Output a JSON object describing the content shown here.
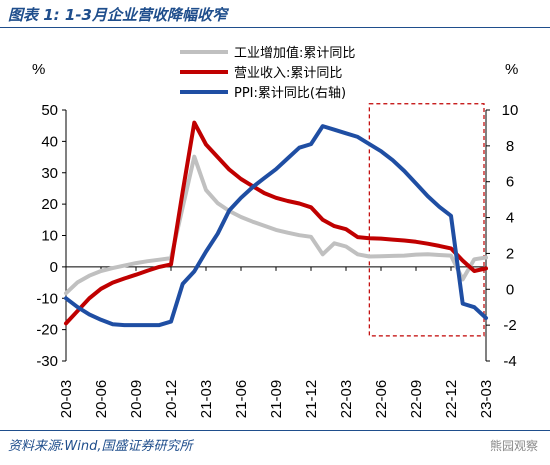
{
  "header": {
    "title": "图表 1:  1-3月企业营收降幅收窄"
  },
  "footer": {
    "source": "资料来源:Wind,国盛证券研究所",
    "watermark": "熊园观察"
  },
  "chart_data": {
    "type": "line",
    "title": "图表 1:  1-3月企业营收降幅收窄",
    "left_unit": "%",
    "right_unit": "%",
    "ylim_left": [
      -30,
      50
    ],
    "ylim_right": [
      -4,
      10
    ],
    "y_ticks_left": [
      -30,
      -20,
      -10,
      0,
      10,
      20,
      30,
      40,
      50
    ],
    "y_ticks_right": [
      -4,
      -2,
      0,
      2,
      4,
      6,
      8,
      10
    ],
    "x_ticks": [
      "20-03",
      "20-06",
      "20-09",
      "20-12",
      "21-03",
      "21-06",
      "21-09",
      "21-12",
      "22-03",
      "22-06",
      "22-09",
      "22-12",
      "23-03"
    ],
    "x_range": [
      "2020-03",
      "2023-03"
    ],
    "legend": {
      "placement": "top-center"
    },
    "highlight_box": {
      "x_from": "2022-05",
      "x_to": "2023-03",
      "y_from_left": -22,
      "y_to_left": 52,
      "style": "dashed",
      "color": "#c00000"
    },
    "series": [
      {
        "name": "工业增加值:累计同比",
        "axis": "left",
        "color": "#c0c0c0",
        "points": [
          [
            "2020-03",
            -8.4
          ],
          [
            "2020-04",
            -4.9
          ],
          [
            "2020-05",
            -2.8
          ],
          [
            "2020-06",
            -1.3
          ],
          [
            "2020-07",
            -0.4
          ],
          [
            "2020-08",
            0.4
          ],
          [
            "2020-09",
            1.2
          ],
          [
            "2020-10",
            1.8
          ],
          [
            "2020-11",
            2.3
          ],
          [
            "2020-12",
            2.8
          ],
          [
            "2021-02",
            35.1
          ],
          [
            "2021-03",
            24.5
          ],
          [
            "2021-04",
            20.3
          ],
          [
            "2021-05",
            17.8
          ],
          [
            "2021-06",
            15.9
          ],
          [
            "2021-07",
            14.4
          ],
          [
            "2021-08",
            13.1
          ],
          [
            "2021-09",
            11.8
          ],
          [
            "2021-10",
            10.9
          ],
          [
            "2021-11",
            10.1
          ],
          [
            "2021-12",
            9.6
          ],
          [
            "2022-01",
            4.0
          ],
          [
            "2022-02",
            7.5
          ],
          [
            "2022-03",
            6.5
          ],
          [
            "2022-04",
            4.0
          ],
          [
            "2022-05",
            3.3
          ],
          [
            "2022-06",
            3.4
          ],
          [
            "2022-07",
            3.5
          ],
          [
            "2022-08",
            3.6
          ],
          [
            "2022-09",
            3.9
          ],
          [
            "2022-10",
            4.0
          ],
          [
            "2022-11",
            3.8
          ],
          [
            "2022-12",
            3.6
          ],
          [
            "2023-01",
            -4.0
          ],
          [
            "2023-02",
            2.4
          ],
          [
            "2023-03",
            3.0
          ]
        ]
      },
      {
        "name": "营业收入:累计同比",
        "axis": "left",
        "color": "#c00000",
        "points": [
          [
            "2020-03",
            -18.0
          ],
          [
            "2020-04",
            -14.0
          ],
          [
            "2020-05",
            -10.0
          ],
          [
            "2020-06",
            -7.0
          ],
          [
            "2020-07",
            -5.0
          ],
          [
            "2020-08",
            -3.7
          ],
          [
            "2020-09",
            -2.5
          ],
          [
            "2020-10",
            -1.2
          ],
          [
            "2020-11",
            0.0
          ],
          [
            "2020-12",
            0.8
          ],
          [
            "2021-01",
            24.0
          ],
          [
            "2021-02",
            46.0
          ],
          [
            "2021-03",
            39.0
          ],
          [
            "2021-04",
            35.0
          ],
          [
            "2021-05",
            31.0
          ],
          [
            "2021-06",
            28.0
          ],
          [
            "2021-07",
            25.7
          ],
          [
            "2021-08",
            23.5
          ],
          [
            "2021-09",
            22.0
          ],
          [
            "2021-10",
            21.0
          ],
          [
            "2021-11",
            20.2
          ],
          [
            "2021-12",
            19.0
          ],
          [
            "2022-01",
            15.0
          ],
          [
            "2022-02",
            13.0
          ],
          [
            "2022-03",
            12.0
          ],
          [
            "2022-04",
            9.5
          ],
          [
            "2022-05",
            9.1
          ],
          [
            "2022-06",
            9.0
          ],
          [
            "2022-07",
            8.7
          ],
          [
            "2022-08",
            8.4
          ],
          [
            "2022-09",
            8.0
          ],
          [
            "2022-10",
            7.4
          ],
          [
            "2022-11",
            6.7
          ],
          [
            "2022-12",
            5.9
          ],
          [
            "2023-01",
            2.0
          ],
          [
            "2023-02",
            -1.3
          ],
          [
            "2023-03",
            -0.5
          ]
        ]
      },
      {
        "name": "PPI:累计同比(右轴)",
        "axis": "right",
        "color": "#1f4ea3",
        "points": [
          [
            "2020-03",
            -0.5
          ],
          [
            "2020-04",
            -1.0
          ],
          [
            "2020-05",
            -1.4
          ],
          [
            "2020-06",
            -1.7
          ],
          [
            "2020-07",
            -1.95
          ],
          [
            "2020-08",
            -2.0
          ],
          [
            "2020-09",
            -2.0
          ],
          [
            "2020-10",
            -2.0
          ],
          [
            "2020-11",
            -2.0
          ],
          [
            "2020-12",
            -1.8
          ],
          [
            "2021-01",
            0.3
          ],
          [
            "2021-02",
            1.0
          ],
          [
            "2021-03",
            2.1
          ],
          [
            "2021-04",
            3.1
          ],
          [
            "2021-05",
            4.4
          ],
          [
            "2021-06",
            5.1
          ],
          [
            "2021-07",
            5.7
          ],
          [
            "2021-08",
            6.2
          ],
          [
            "2021-09",
            6.7
          ],
          [
            "2021-10",
            7.3
          ],
          [
            "2021-11",
            7.9
          ],
          [
            "2021-12",
            8.1
          ],
          [
            "2022-01",
            9.1
          ],
          [
            "2022-02",
            8.9
          ],
          [
            "2022-03",
            8.7
          ],
          [
            "2022-04",
            8.5
          ],
          [
            "2022-05",
            8.1
          ],
          [
            "2022-06",
            7.7
          ],
          [
            "2022-07",
            7.2
          ],
          [
            "2022-08",
            6.6
          ],
          [
            "2022-09",
            5.9
          ],
          [
            "2022-10",
            5.2
          ],
          [
            "2022-11",
            4.6
          ],
          [
            "2022-12",
            4.1
          ],
          [
            "2023-01",
            -0.8
          ],
          [
            "2023-02",
            -1.0
          ],
          [
            "2023-03",
            -1.6
          ]
        ]
      }
    ]
  }
}
